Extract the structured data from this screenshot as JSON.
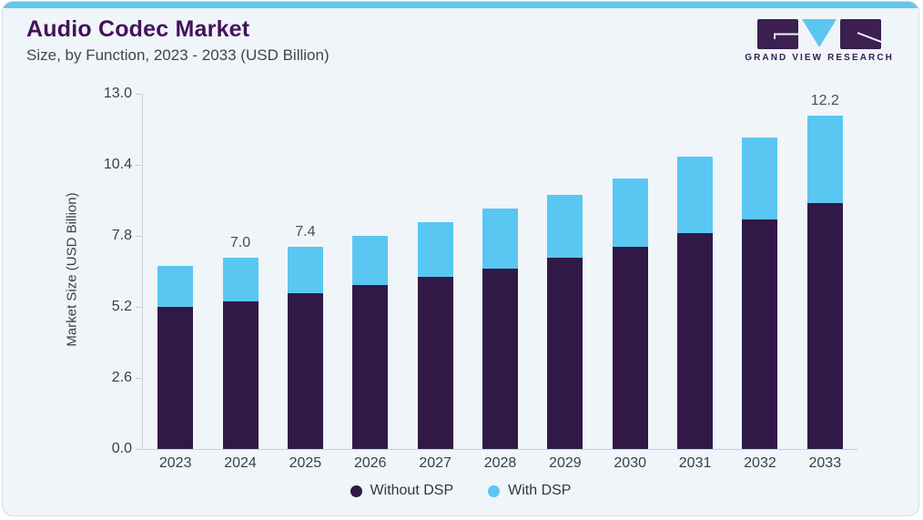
{
  "header": {
    "title": "Audio Codec Market",
    "subtitle": "Size, by Function, 2023 - 2033 (USD Billion)"
  },
  "logo": {
    "text": "GRAND VIEW RESEARCH",
    "mark_color": "#3b2050",
    "triangle_color": "#5ac7ef"
  },
  "chart_data": {
    "type": "bar",
    "stacked": true,
    "title": "Audio Codec Market",
    "subtitle": "Size, by Function, 2023 - 2033 (USD Billion)",
    "ylabel": "Market Size (USD Billion)",
    "xlabel": "",
    "categories": [
      "2023",
      "2024",
      "2025",
      "2026",
      "2027",
      "2028",
      "2029",
      "2030",
      "2031",
      "2032",
      "2033"
    ],
    "series": [
      {
        "name": "Without DSP",
        "color": "#301947",
        "values": [
          5.2,
          5.4,
          5.7,
          6.0,
          6.3,
          6.6,
          7.0,
          7.4,
          7.9,
          8.4,
          9.0
        ]
      },
      {
        "name": "With DSP",
        "color": "#59c7f2",
        "values": [
          1.5,
          1.6,
          1.7,
          1.8,
          2.0,
          2.2,
          2.3,
          2.5,
          2.8,
          3.0,
          3.2
        ]
      }
    ],
    "totals": [
      6.7,
      7.0,
      7.4,
      7.8,
      8.3,
      8.8,
      9.3,
      9.9,
      10.7,
      11.4,
      12.2
    ],
    "bar_labels": {
      "2024": "7.0",
      "2025": "7.4",
      "2033": "12.2"
    },
    "yticks": [
      0.0,
      2.6,
      5.2,
      7.8,
      10.4,
      13.0
    ],
    "ytick_labels": [
      "0.0",
      "2.6",
      "5.2",
      "7.8",
      "10.4",
      "13.0"
    ],
    "ylim": [
      0,
      13.0
    ],
    "grid": false,
    "legend_position": "bottom"
  },
  "colors": {
    "card_background": "#f0f5f9",
    "top_strip": "#63c6ef",
    "card_border": "#d6dbe0",
    "axis_line": "#c9ced4",
    "title_text": "#44125c",
    "subtitle_text": "#41454b",
    "axis_text": "#3b3e43",
    "bar_label_text": "#4a4d52"
  }
}
